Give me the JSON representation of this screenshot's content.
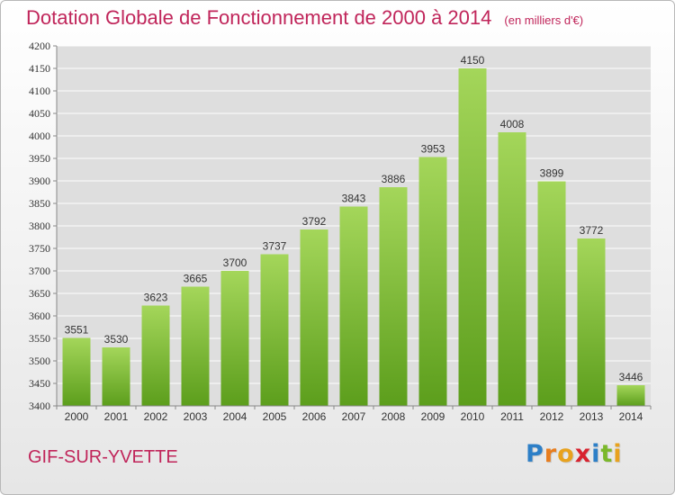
{
  "title": "Dotation Globale de Fonctionnement de 2000 à 2014",
  "unit": "(en milliers d'€)",
  "city": "GIF-SUR-YVETTE",
  "logo": {
    "letters": [
      "P",
      "r",
      "o",
      "x",
      "i",
      "t",
      "i"
    ],
    "colors": [
      "#2d7fc7",
      "#e87d1e",
      "#e8a21e",
      "#d8222e",
      "#2d7fc7",
      "#7bb82a",
      "#e8a21e"
    ]
  },
  "colors": {
    "title": "#c0255a",
    "bar_top": "#a4d65a",
    "bar_bottom": "#5c9e1c",
    "grid": "#ffffff",
    "axis": "#888888"
  },
  "chart_data": {
    "type": "bar",
    "categories": [
      "2000",
      "2001",
      "2002",
      "2003",
      "2004",
      "2005",
      "2006",
      "2007",
      "2008",
      "2009",
      "2010",
      "2011",
      "2012",
      "2013",
      "2014"
    ],
    "values": [
      3551,
      3530,
      3623,
      3665,
      3700,
      3737,
      3792,
      3843,
      3886,
      3953,
      4150,
      4008,
      3899,
      3772,
      3446
    ],
    "ylim": [
      3400,
      4200
    ],
    "yticks": [
      3400,
      3450,
      3500,
      3550,
      3600,
      3650,
      3700,
      3750,
      3800,
      3850,
      3900,
      3950,
      4000,
      4050,
      4100,
      4150,
      4200
    ],
    "grid": true,
    "data_labels": true
  }
}
